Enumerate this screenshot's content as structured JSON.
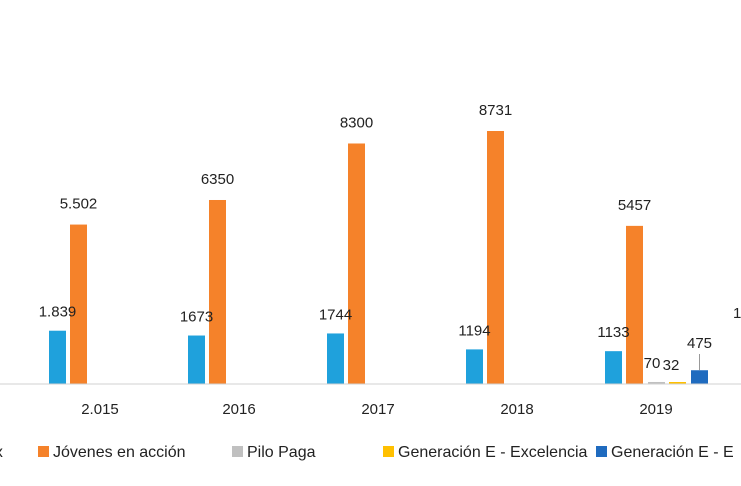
{
  "chart_data": {
    "type": "bar",
    "categories": [
      "2.015",
      "2016",
      "2017",
      "2018",
      "2019"
    ],
    "series": [
      {
        "name": "ex",
        "color": "#1fa1dc",
        "values": [
          1839,
          1673,
          1744,
          1194,
          1133
        ],
        "labels": [
          "1.839",
          "1673",
          "1744",
          "1194",
          "1133"
        ]
      },
      {
        "name": "Jóvenes en acción",
        "color": "#f5822a",
        "values": [
          5502,
          6350,
          8300,
          8731,
          5457
        ],
        "labels": [
          "5.502",
          "6350",
          "8300",
          "8731",
          "5457"
        ]
      },
      {
        "name": "Pilo Paga",
        "color": "#c0c0c0",
        "values": [
          null,
          null,
          null,
          null,
          70
        ],
        "labels": [
          "",
          "",
          "",
          "",
          "70"
        ]
      },
      {
        "name": "Generación E - Excelencia",
        "color": "#ffc000",
        "values": [
          null,
          null,
          null,
          null,
          32
        ],
        "labels": [
          "",
          "",
          "",
          "",
          "32"
        ]
      },
      {
        "name": "Generación E - E",
        "color": "#1f6bbf",
        "values": [
          null,
          null,
          null,
          null,
          475
        ],
        "labels": [
          "",
          "",
          "",
          "",
          "475"
        ]
      }
    ],
    "cut_label": "1",
    "ylim": [
      0,
      10500
    ],
    "grid": false,
    "legend_position": "bottom"
  }
}
